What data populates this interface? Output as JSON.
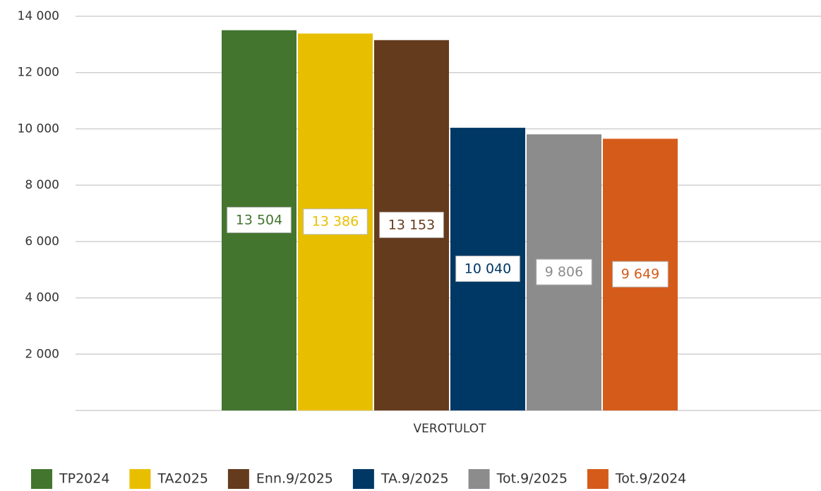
{
  "chart_data": {
    "type": "bar",
    "categories": [
      "VEROTULOT"
    ],
    "series": [
      {
        "name": "TP2024",
        "color": "#43752f",
        "values": [
          13504
        ],
        "value_labels": [
          "13 504"
        ]
      },
      {
        "name": "TA2025",
        "color": "#e8bf00",
        "values": [
          13386
        ],
        "value_labels": [
          "13 386"
        ]
      },
      {
        "name": "Enn.9/2025",
        "color": "#653b1d",
        "values": [
          13153
        ],
        "value_labels": [
          "13 153"
        ]
      },
      {
        "name": "TA.9/2025",
        "color": "#003865",
        "values": [
          10040
        ],
        "value_labels": [
          "10 040"
        ]
      },
      {
        "name": "Tot.9/2025",
        "color": "#8c8c8c",
        "values": [
          9806
        ],
        "value_labels": [
          "9 806"
        ]
      },
      {
        "name": "Tot.9/2024",
        "color": "#d55b1a",
        "values": [
          9649
        ],
        "value_labels": [
          "9 649"
        ]
      }
    ],
    "ylim": [
      0,
      14000
    ],
    "yticks": [
      {
        "value": 2000,
        "label": "2 000"
      },
      {
        "value": 4000,
        "label": "4 000"
      },
      {
        "value": 6000,
        "label": "6 000"
      },
      {
        "value": 8000,
        "label": "8 000"
      },
      {
        "value": 10000,
        "label": "10 000"
      },
      {
        "value": 12000,
        "label": "12 000"
      },
      {
        "value": 14000,
        "label": "14 000"
      }
    ],
    "grid": true,
    "legend": "bottom"
  }
}
